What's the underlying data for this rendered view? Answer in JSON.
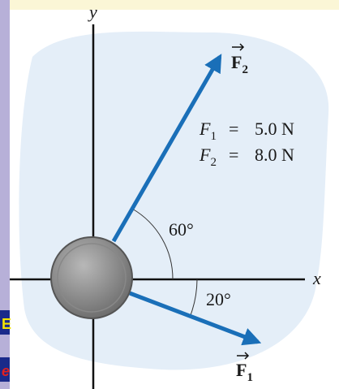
{
  "axes": {
    "y": "y",
    "x": "x"
  },
  "forces": [
    {
      "symbol": "F",
      "subscript": "1"
    },
    {
      "symbol": "F",
      "subscript": "2"
    }
  ],
  "givens": [
    {
      "symbol": "F",
      "subscript": "1",
      "equals": "=",
      "value": "5.0 N"
    },
    {
      "symbol": "F",
      "subscript": "2",
      "equals": "=",
      "value": "8.0 N"
    }
  ],
  "angles": [
    "60°",
    "20°"
  ],
  "fragments": [
    "E",
    "e"
  ]
}
